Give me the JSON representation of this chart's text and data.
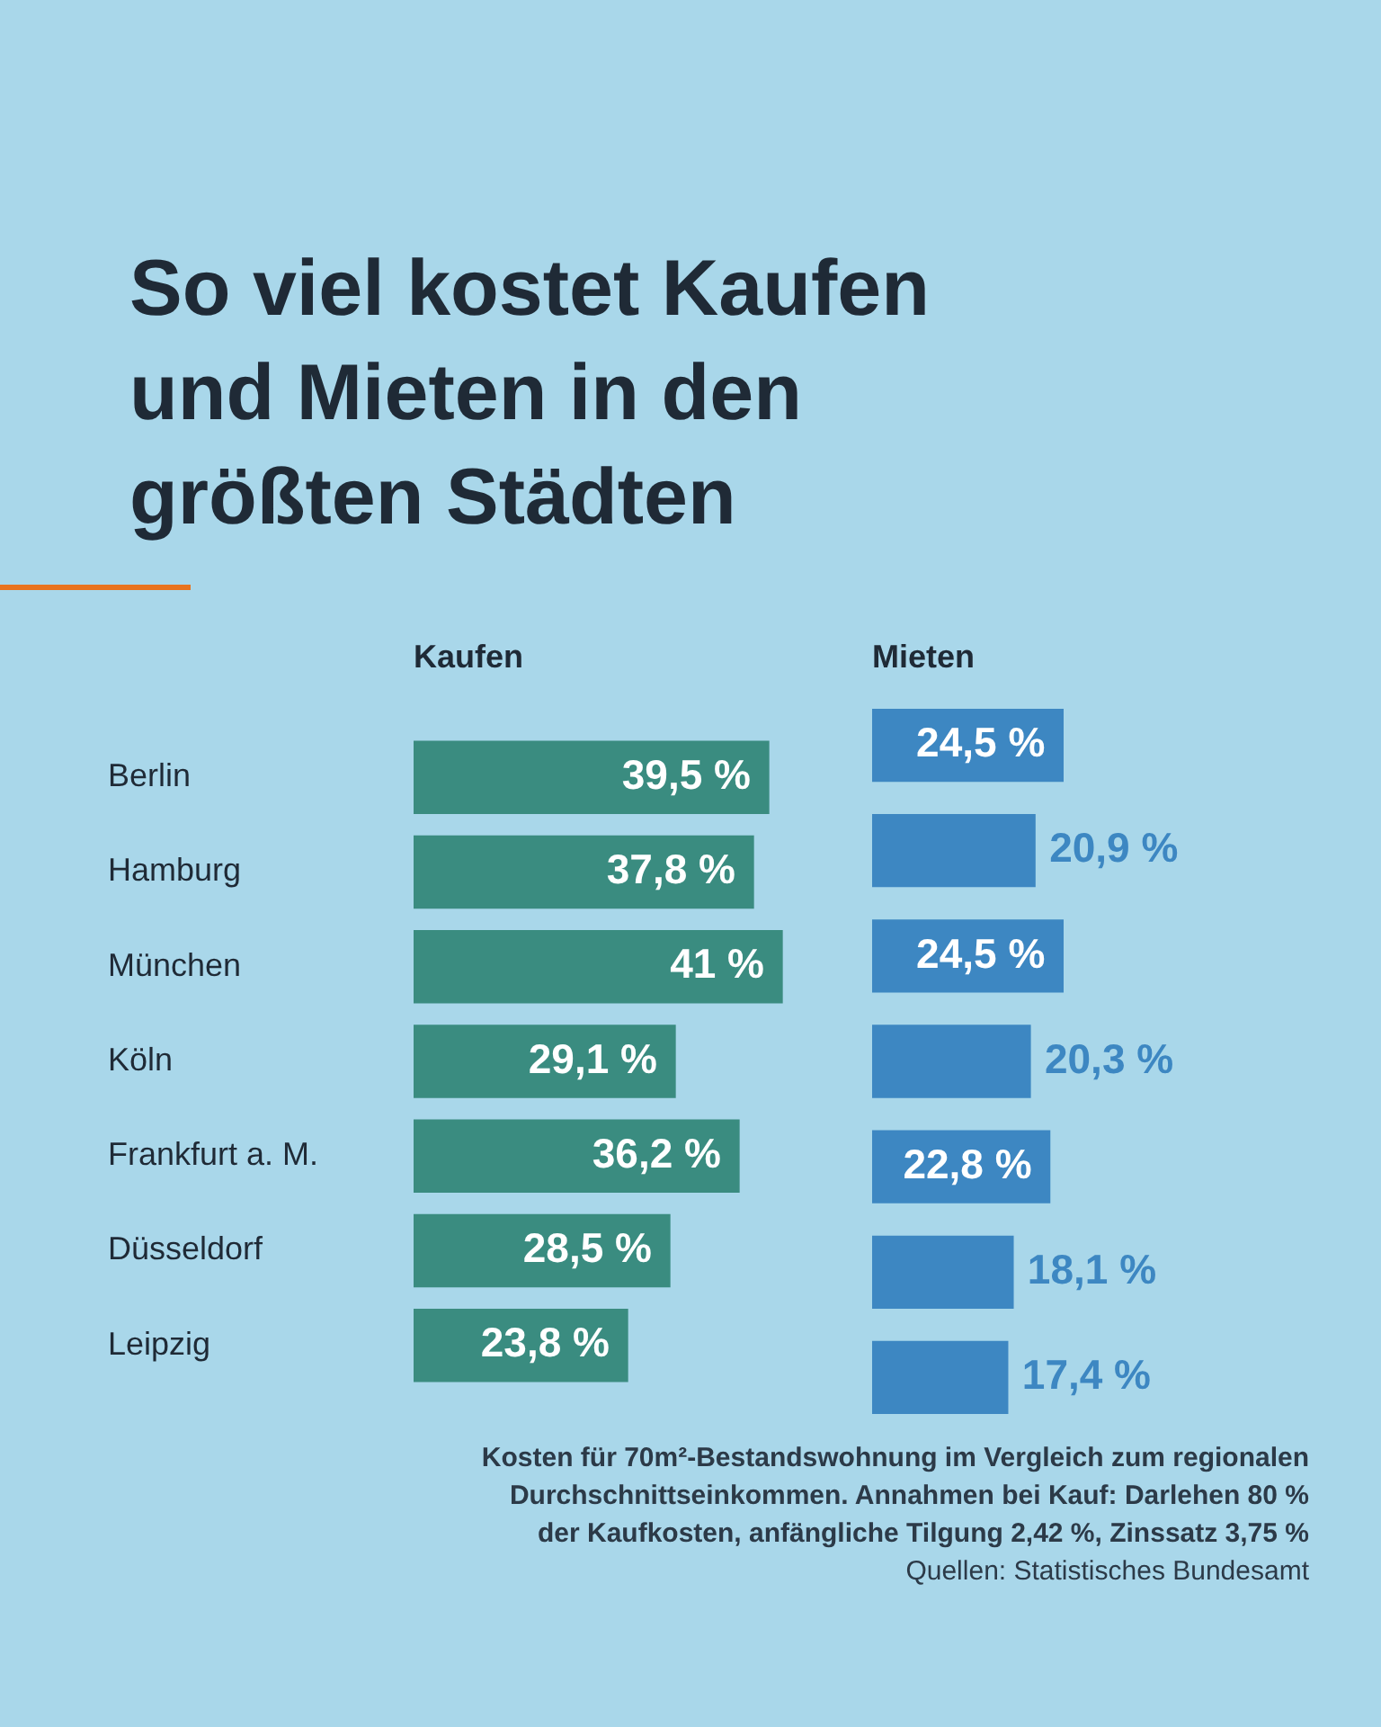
{
  "chart_data": [
    {
      "type": "other",
      "title": "So viel kostet Kaufen und Mieten in den größten Städten"
    },
    {
      "type": "bar",
      "orientation": "horizontal",
      "title": "Kaufen",
      "categories": [
        "Berlin",
        "Hamburg",
        "München",
        "Köln",
        "Frankfurt a. M.",
        "Düsseldorf",
        "Leipzig"
      ],
      "values": [
        39.5,
        37.8,
        41,
        29.1,
        36.2,
        28.5,
        23.8
      ],
      "value_labels": [
        "39,5 %",
        "37,8 %",
        "41 %",
        "29,1 %",
        "36,2 %",
        "28,5 %",
        "23,8 %"
      ],
      "color": "#3a8c80",
      "tick_labels": "y"
    },
    {
      "type": "bar",
      "orientation": "horizontal",
      "title": "Mieten",
      "categories": [
        null,
        null,
        null,
        null,
        null,
        null,
        null
      ],
      "values": [
        24.5,
        20.9,
        24.5,
        20.3,
        22.8,
        18.1,
        17.4
      ],
      "value_labels": [
        "24,5 %",
        "20,9 %",
        "24,5 %",
        "20,3 %",
        "22,8 %",
        "18,1 %",
        "17,4 %"
      ],
      "color": "#3d87c2",
      "tick_labels": false
    },
    {
      "type": "other",
      "annotations": [
        "Kosten für 70m²-Bestandswohnung im Vergleich zum regionalen Durchschnittseinkommen. Annahmen bei Kauf: Darlehen 80 % der Kaufkosten, anfängliche Tilgung 2,42 %, Zinssatz 3,75 %",
        "Quellen: Statistisches Bundesamt"
      ]
    }
  ]
}
